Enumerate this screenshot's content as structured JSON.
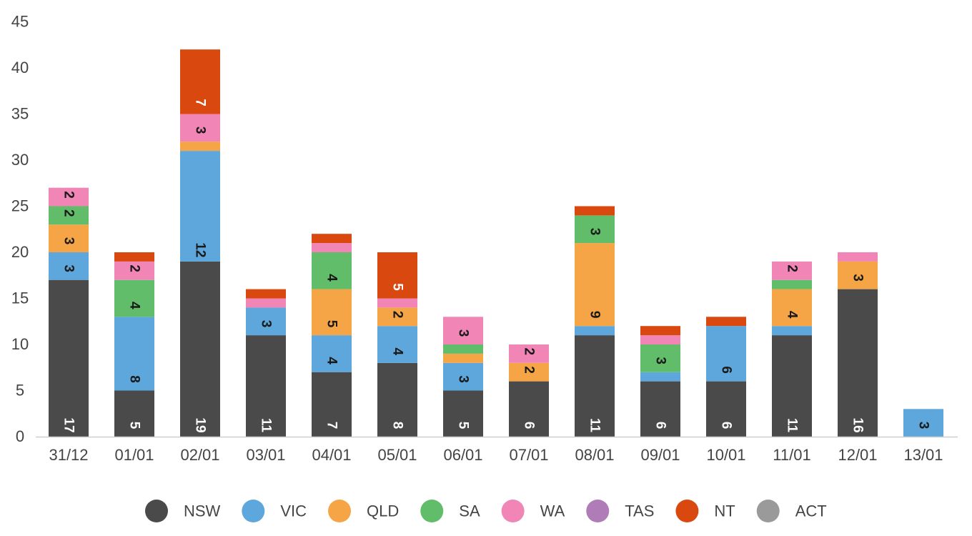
{
  "chart_data": {
    "type": "bar",
    "stacked": true,
    "title": "",
    "xlabel": "",
    "ylabel": "",
    "ylim": [
      0,
      45
    ],
    "yticks": [
      0,
      5,
      10,
      15,
      20,
      25,
      30,
      35,
      40,
      45
    ],
    "grid": false,
    "legend_position": "bottom",
    "categories": [
      "31/12",
      "01/01",
      "02/01",
      "03/01",
      "04/01",
      "05/01",
      "06/01",
      "07/01",
      "08/01",
      "09/01",
      "10/01",
      "11/01",
      "12/01",
      "13/01"
    ],
    "series": [
      {
        "name": "NSW",
        "color": "#4a4a4a",
        "label_color": "#ffffff",
        "values": [
          17,
          5,
          19,
          11,
          7,
          8,
          5,
          6,
          11,
          6,
          6,
          11,
          16,
          0
        ]
      },
      {
        "name": "VIC",
        "color": "#5ea7dc",
        "label_color": "#1a1a1a",
        "values": [
          3,
          8,
          12,
          3,
          4,
          4,
          3,
          0,
          1,
          1,
          6,
          1,
          0,
          3
        ]
      },
      {
        "name": "QLD",
        "color": "#f6a546",
        "label_color": "#1a1a1a",
        "values": [
          3,
          0,
          1,
          0,
          5,
          2,
          1,
          2,
          9,
          0,
          0,
          4,
          3,
          0
        ]
      },
      {
        "name": "SA",
        "color": "#62bd6a",
        "label_color": "#1a1a1a",
        "values": [
          2,
          4,
          0,
          0,
          4,
          0,
          1,
          0,
          3,
          3,
          0,
          1,
          0,
          0
        ]
      },
      {
        "name": "WA",
        "color": "#f185b6",
        "label_color": "#1a1a1a",
        "values": [
          2,
          2,
          3,
          1,
          1,
          1,
          3,
          2,
          0,
          1,
          0,
          2,
          1,
          0
        ]
      },
      {
        "name": "TAS",
        "color": "#b07cb8",
        "label_color": "#1a1a1a",
        "values": [
          0,
          0,
          0,
          0,
          0,
          0,
          0,
          0,
          0,
          0,
          0,
          0,
          0,
          0
        ]
      },
      {
        "name": "NT",
        "color": "#d9480f",
        "label_color": "#ffffff",
        "values": [
          0,
          1,
          7,
          1,
          1,
          5,
          0,
          0,
          1,
          1,
          1,
          0,
          0,
          0
        ]
      },
      {
        "name": "ACT",
        "color": "#9a9a9a",
        "label_color": "#1a1a1a",
        "values": [
          0,
          0,
          0,
          0,
          0,
          0,
          0,
          0,
          0,
          0,
          0,
          0,
          0,
          0
        ]
      }
    ]
  }
}
